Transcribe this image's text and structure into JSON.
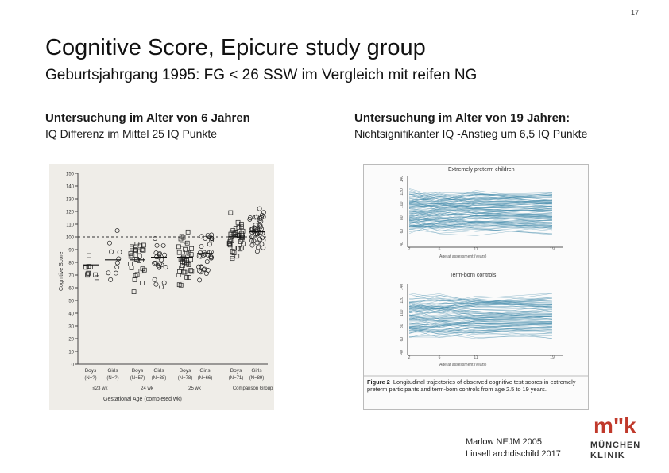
{
  "page_number": "17",
  "title": "Cognitive Score, Epicure study group",
  "subtitle": "Geburtsjahrgang 1995: FG < 26 SSW im Vergleich mit reifen NG",
  "left": {
    "heading": "Untersuchung im Alter von 6 Jahren",
    "subheading": "IQ Differenz im Mittel 25 IQ Punkte",
    "figure": {
      "y_axis_label": "Cognitive Score",
      "y_ticks": [
        "150",
        "140",
        "130",
        "120",
        "110",
        "100",
        "90",
        "80",
        "70",
        "60",
        "50",
        "40",
        "30",
        "20",
        "10",
        "0"
      ],
      "groups": [
        {
          "sex": "Boys",
          "n": "(N=?)",
          "age": "≤23 wk"
        },
        {
          "sex": "Girls",
          "n": "(N=?)",
          "age": ""
        },
        {
          "sex": "Boys",
          "n": "(N=57)",
          "age": "24 wk"
        },
        {
          "sex": "Girls",
          "n": "(N=38)",
          "age": ""
        },
        {
          "sex": "Boys",
          "n": "(N=78)",
          "age": "25 wk"
        },
        {
          "sex": "Girls",
          "n": "(N=66)",
          "age": ""
        },
        {
          "sex": "Boys",
          "n": "(N=71)",
          "age": "Comparison"
        },
        {
          "sex": "Girls",
          "n": "(N=89)",
          "age": "Group"
        }
      ],
      "x_axis_label": "Gestational Age (completed wk)"
    }
  },
  "right": {
    "heading": "Untersuchung im Alter von 19 Jahren:",
    "subheading": "Nichtsignifikanter IQ -Anstieg um  6,5 IQ Punkte",
    "figure": {
      "top_panel_title": "Extremely preterm children",
      "bottom_panel_title": "Term-born controls",
      "x_axis_label": "Age at assessment (years)",
      "x_ticks": [
        "2",
        "6",
        "11",
        "19"
      ],
      "y_ticks": [
        "140",
        "120",
        "100",
        "80",
        "60",
        "40"
      ],
      "caption_label": "Figure 2",
      "caption_text": "Longitudinal trajectories of observed cognitive test scores in extremely preterm participants and term-born controls from age 2.5 to 19 years.",
      "series_color": "#3f88aa"
    }
  },
  "citation": {
    "line1": "Marlow NEJM 2005",
    "line2": "Linsell  archdischild 2017"
  },
  "logo": {
    "mark": "m\"k",
    "line1": "MÜNCHEN",
    "line2": "KLINIK",
    "color": "#c0392b"
  }
}
